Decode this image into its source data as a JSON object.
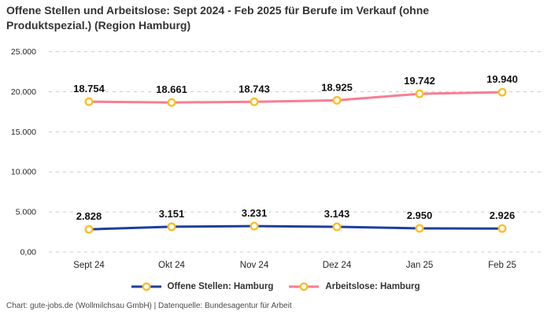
{
  "header": {
    "title": "Offene Stellen und Arbeitslose: Sept 2024 - Feb 2025 für Berufe im Verkauf (ohne Produktspezial.) (Region Hamburg)"
  },
  "footer": {
    "text": "Chart: gute-jobs.de (Wollmilchsau GmbH) | Datenquelle: Bundesagentur für Arbeit"
  },
  "chart_data": {
    "type": "line",
    "title": "Offene Stellen und Arbeitslose: Sept 2024 - Feb 2025 für Berufe im Verkauf (ohne Produktspezial.) (Region Hamburg)",
    "categories": [
      "Sept 24",
      "Okt 24",
      "Nov 24",
      "Dez 24",
      "Jan 25",
      "Feb 25"
    ],
    "series": [
      {
        "name": "Offene Stellen: Hamburg",
        "values": [
          2828,
          3151,
          3231,
          3143,
          2950,
          2926
        ],
        "point_labels": [
          "2.828",
          "3.151",
          "3.231",
          "3.143",
          "2.950",
          "2.926"
        ],
        "color": "#1f3f9e"
      },
      {
        "name": "Arbeitslose: Hamburg",
        "values": [
          18754,
          18661,
          18743,
          18925,
          19742,
          19940
        ],
        "point_labels": [
          "18.754",
          "18.661",
          "18.743",
          "18.925",
          "19.742",
          "19.940"
        ],
        "color": "#f97d91"
      }
    ],
    "marker": {
      "shape": "circle-ring",
      "fill": "#ffffff",
      "stroke": "#fbbf24"
    },
    "y_ticks": [
      {
        "value": 25000,
        "label": "25.000"
      },
      {
        "value": 20000,
        "label": "20.000"
      },
      {
        "value": 15000,
        "label": "15.000"
      },
      {
        "value": 10000,
        "label": "10.000"
      },
      {
        "value": 5000,
        "label": "5.000"
      },
      {
        "value": 0,
        "label": "0,00"
      }
    ],
    "ylim": [
      0,
      25000
    ],
    "grid": "horizontal-dashed",
    "grid_color": "#cccccc",
    "legend_position": "bottom",
    "xlabel": "",
    "ylabel": ""
  }
}
